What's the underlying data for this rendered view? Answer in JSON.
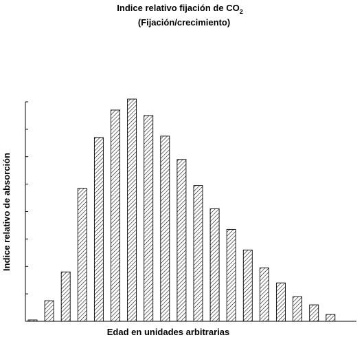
{
  "chart_data": {
    "type": "bar",
    "title_main": "Indice relativo fijación de ",
    "title_formula": "CO",
    "title_subscript": "2",
    "subtitle": "(Fijación/crecimiento)",
    "xlabel": "Edad en unidades arbitrarias",
    "ylabel": "Indice relativo de absorción",
    "ylim": [
      0,
      8
    ],
    "ytick_count": 8,
    "grid": false,
    "legend": "none",
    "values": [
      0.05,
      0.75,
      1.8,
      4.85,
      6.7,
      7.7,
      8.1,
      7.5,
      6.75,
      5.9,
      4.95,
      4.1,
      3.35,
      2.6,
      1.95,
      1.4,
      0.9,
      0.6,
      0.25,
      0.0
    ],
    "colors": {
      "ink": "#000000",
      "hatch": "#000000",
      "background": "#ffffff"
    }
  }
}
